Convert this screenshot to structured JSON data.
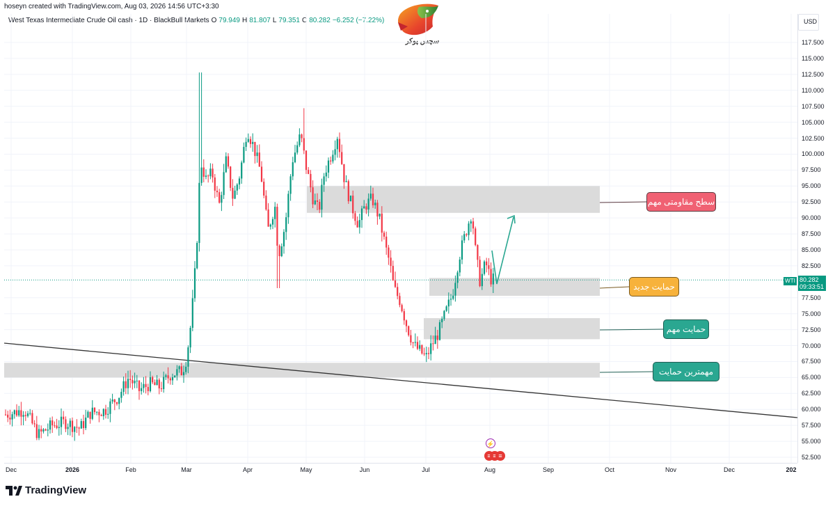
{
  "header": {
    "caption": "hoseyn created with TradingView.com, Aug 03, 2026 14:56 UTC+3:30",
    "symbol_title": "West Texas Intermediate Crude Oil cash · 1D · BlackBull Markets",
    "ohlc": [
      {
        "label": "O",
        "value": "79.949"
      },
      {
        "label": "H",
        "value": "81.807"
      },
      {
        "label": "L",
        "value": "79.351"
      },
      {
        "label": "C",
        "value": "80.282"
      }
    ],
    "change": "−6.252 (−7.22%)"
  },
  "logo": {
    "text": "سچس پوکر"
  },
  "price_axis": {
    "currency": "USD",
    "ticks": [
      "117.500",
      "115.000",
      "112.500",
      "110.000",
      "107.500",
      "105.000",
      "102.500",
      "100.000",
      "97.500",
      "95.000",
      "92.500",
      "90.000",
      "87.500",
      "85.000",
      "82.500",
      "77.500",
      "75.000",
      "72.500",
      "70.000",
      "67.500",
      "65.000",
      "62.500",
      "60.000",
      "57.500",
      "55.000",
      "52.500"
    ],
    "last_price": "80.282",
    "countdown": "09:33:51",
    "symbol_short": "WTI"
  },
  "time_axis": {
    "labels": [
      {
        "text": "Dec",
        "bold": false
      },
      {
        "text": "2026",
        "bold": true
      },
      {
        "text": "Feb",
        "bold": false
      },
      {
        "text": "Mar",
        "bold": false
      },
      {
        "text": "Apr",
        "bold": false
      },
      {
        "text": "May",
        "bold": false
      },
      {
        "text": "Jun",
        "bold": false
      },
      {
        "text": "Jul",
        "bold": false
      },
      {
        "text": "Aug",
        "bold": false
      },
      {
        "text": "Sep",
        "bold": false
      },
      {
        "text": "Oct",
        "bold": false
      },
      {
        "text": "Nov",
        "bold": false
      },
      {
        "text": "Dec",
        "bold": false
      },
      {
        "text": "202",
        "bold": true
      }
    ]
  },
  "annotations": {
    "resistance": "سطح مقاومتی مهم",
    "new_support": "حمایت جدید",
    "important_support": "حمایت مهم",
    "most_important_support": "مهمترین حمایت"
  },
  "zones": [
    {
      "name": "resistance",
      "from": 90.8,
      "to": 95.0
    },
    {
      "name": "new_support",
      "from": 77.8,
      "to": 80.6
    },
    {
      "name": "important_support",
      "from": 71.0,
      "to": 74.3
    },
    {
      "name": "most_important_support",
      "from": 65.0,
      "to": 67.3
    }
  ],
  "colors": {
    "up": "#089981",
    "down": "#f23645",
    "zone": "#d9d9d9",
    "trendline": "#333333",
    "resistance_label": "#f06173",
    "new_support_label": "#f7b23b",
    "support_label": "#2aa791"
  },
  "footer": {
    "brand": "TradingView"
  }
}
